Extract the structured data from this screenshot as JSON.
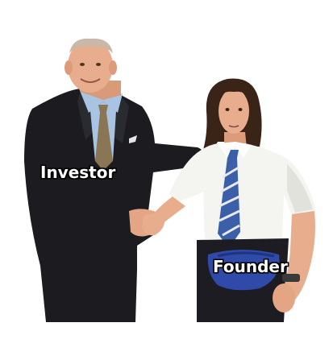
{
  "meme": {
    "labels": {
      "left_person": "Investor",
      "right_person": "Founder"
    }
  },
  "colors": {
    "background": "#ffffff",
    "investor_suit": "#1b1b20",
    "investor_shirt": "#a9c4e2",
    "investor_tie": "#8a7555",
    "founder_shirt": "#f4f4f0",
    "founder_tie_blue": "#3b5fa8",
    "founder_pants": "#1c1c22",
    "founder_fanny_pack": "#2f4aa8",
    "skin": "#e8ad8c",
    "founder_hair": "#3a2418",
    "caption_text": "#ffffff",
    "caption_outline": "#000000"
  }
}
